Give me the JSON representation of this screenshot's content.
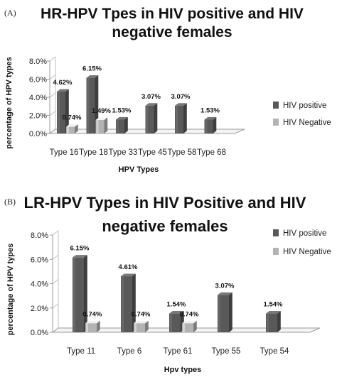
{
  "chart_data": [
    {
      "panel": "(A)",
      "type": "bar",
      "title_lines": [
        "HR-HPV Tpes in HIV positive and HIV",
        "negative females"
      ],
      "xlabel": "HPV Types",
      "ylabel": "percentage of HPV types",
      "ylim": [
        0,
        8
      ],
      "yticks": [
        "0.0%",
        "2.0%",
        "4.0%",
        "6.0%",
        "8.0%"
      ],
      "categories": [
        "Type 16",
        "Type 18",
        "Type 33",
        "Type 45",
        "Type 58",
        "Type 68"
      ],
      "series": [
        {
          "name": "HIV positive",
          "color": "#595959",
          "values": [
            4.62,
            6.15,
            1.53,
            3.07,
            3.07,
            1.53
          ],
          "labels": [
            "4.62%",
            "6.15%",
            "1.53%",
            "3.07%",
            "3.07%",
            "1.53%"
          ]
        },
        {
          "name": "HIV Negative",
          "color": "#b3b3b3",
          "values": [
            0.74,
            1.49,
            null,
            null,
            null,
            null
          ],
          "labels": [
            "0.74%",
            "1.49%",
            "",
            "",
            "",
            ""
          ]
        }
      ],
      "legend": "right",
      "grid": false
    },
    {
      "panel": "(B)",
      "type": "bar",
      "title_lines": [
        "LR-HPV Types in HIV Positive and HIV",
        "negative females"
      ],
      "xlabel": "Hpv types",
      "ylabel": "percentage of  HPV types",
      "ylim": [
        0,
        8
      ],
      "yticks": [
        "0.0%",
        "2.0%",
        "4.0%",
        "6.0%",
        "8.0%"
      ],
      "categories": [
        "Type 11",
        "Type 6",
        "Type 61",
        "Type 55",
        "Type 54"
      ],
      "series": [
        {
          "name": "HIV positive",
          "color": "#595959",
          "values": [
            6.15,
            4.61,
            1.54,
            3.07,
            1.54
          ],
          "labels": [
            "6.15%",
            "4.61%",
            "1.54%",
            "3.07%",
            "1.54%"
          ]
        },
        {
          "name": "HIV Negative",
          "color": "#b3b3b3",
          "values": [
            0.74,
            0.74,
            0.74,
            null,
            null
          ],
          "labels": [
            "0.74%",
            "0.74%",
            "0.74%",
            "",
            ""
          ]
        }
      ],
      "legend": "top-right",
      "grid": false
    }
  ]
}
